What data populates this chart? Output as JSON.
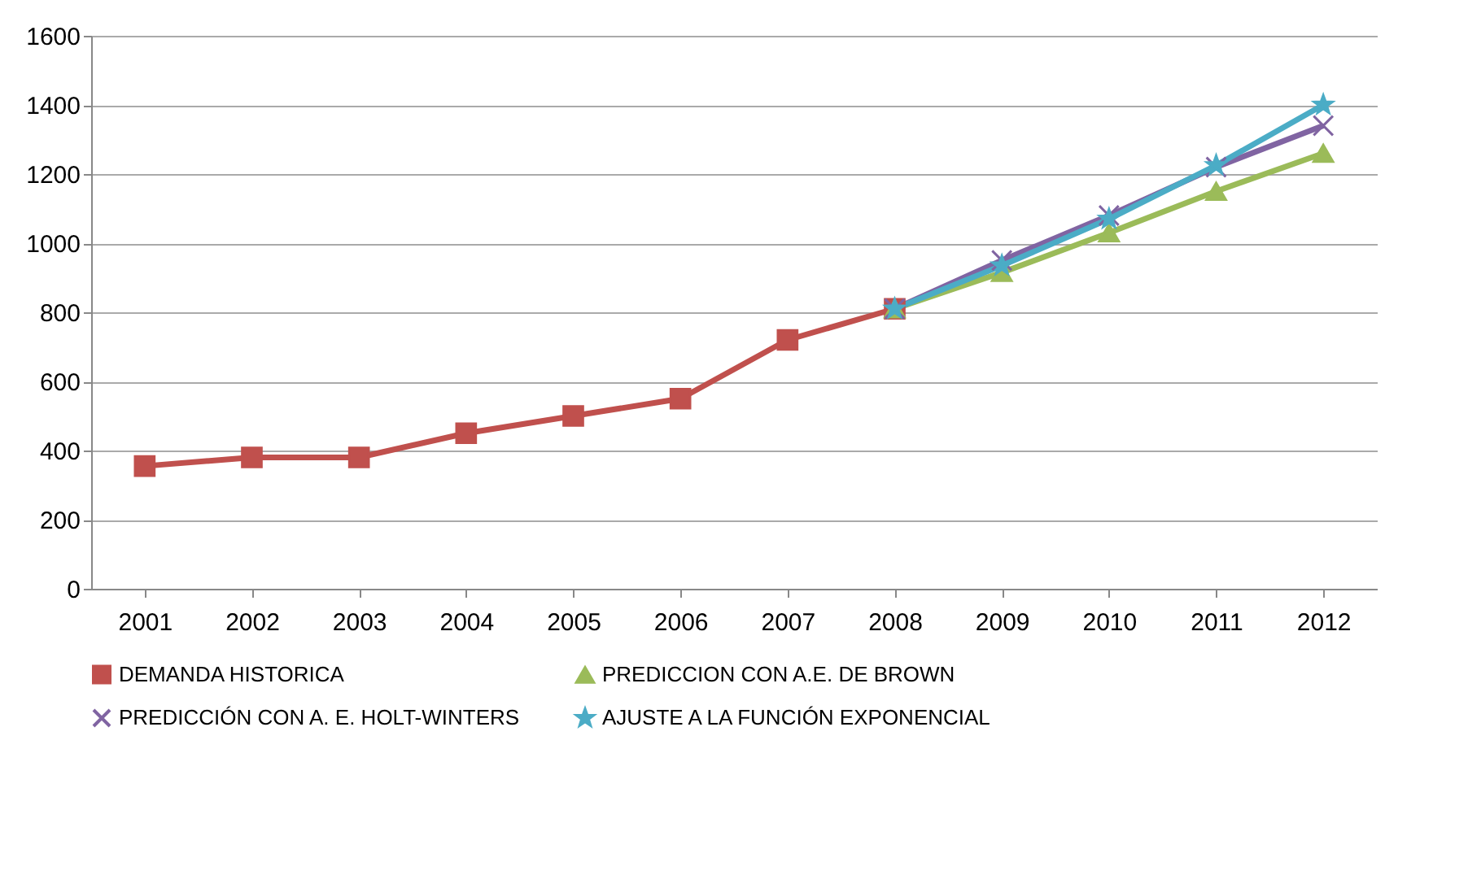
{
  "chart_data": {
    "type": "line",
    "categories": [
      "2001",
      "2002",
      "2003",
      "2004",
      "2005",
      "2006",
      "2007",
      "2008",
      "2009",
      "2010",
      "2011",
      "2012"
    ],
    "ylim": [
      0,
      1600
    ],
    "yticks": [
      0,
      200,
      400,
      600,
      800,
      1000,
      1200,
      1400,
      1600
    ],
    "grid": "y",
    "legend": "bottom",
    "series": [
      {
        "name": "DEMANDA HISTORICA",
        "color": "#c0504d",
        "marker": "square",
        "values": [
          355,
          380,
          380,
          450,
          500,
          550,
          720,
          810,
          null,
          null,
          null,
          null
        ]
      },
      {
        "name": "PREDICCION CON A.E. DE BROWN",
        "color": "#9bbb59",
        "marker": "triangle",
        "values": [
          null,
          null,
          null,
          null,
          null,
          null,
          null,
          810,
          915,
          1030,
          1150,
          1260
        ]
      },
      {
        "name": "PREDICCIÓN CON A. E. HOLT-WINTERS",
        "color": "#8064a2",
        "marker": "cross",
        "values": [
          null,
          null,
          null,
          null,
          null,
          null,
          null,
          810,
          950,
          1080,
          1220,
          1340
        ]
      },
      {
        "name": "AJUSTE A LA FUNCIÓN EXPONENCIAL",
        "color": "#4bacc6",
        "marker": "star",
        "values": [
          null,
          null,
          null,
          null,
          null,
          null,
          null,
          810,
          935,
          1070,
          1225,
          1400
        ]
      }
    ]
  }
}
